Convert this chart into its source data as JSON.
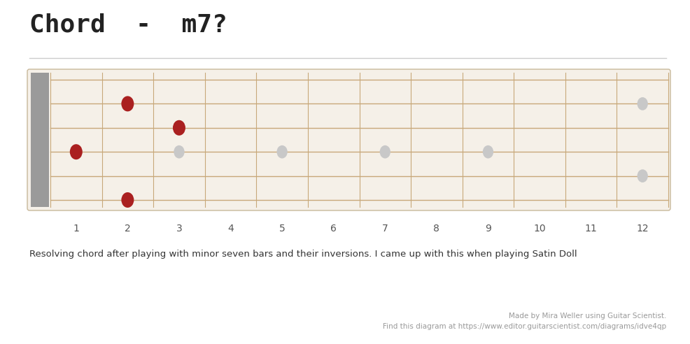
{
  "title": "Chord  -  m7?",
  "bg_color": "#ffffff",
  "fretboard_bg": "#f5f0e8",
  "fretboard_border": "#c8b89a",
  "nut_color": "#9a9a9a",
  "string_color": "#c8a87a",
  "fret_color": "#c8a87a",
  "num_strings": 6,
  "num_frets": 12,
  "red_dots": [
    {
      "fret": 2,
      "string": 2
    },
    {
      "fret": 3,
      "string": 3
    },
    {
      "fret": 1,
      "string": 4
    },
    {
      "fret": 2,
      "string": 6
    }
  ],
  "gray_dots": [
    {
      "fret": 3,
      "string": 4
    },
    {
      "fret": 5,
      "string": 4
    },
    {
      "fret": 7,
      "string": 4
    },
    {
      "fret": 9,
      "string": 4
    },
    {
      "fret": 12,
      "string": 2
    },
    {
      "fret": 12,
      "string": 5
    }
  ],
  "red_dot_color": "#aa2020",
  "gray_dot_color": "#c8c8c8",
  "fret_labels": [
    "1",
    "2",
    "3",
    "4",
    "5",
    "6",
    "7",
    "8",
    "9",
    "10",
    "11",
    "12"
  ],
  "caption": "Resolving chord after playing with minor seven bars and their inversions. I came up with this when playing Satin Doll",
  "footer_line1": "Made by Mira Weller using Guitar Scientist.",
  "footer_line2": "Find this diagram at https://www.editor.guitarscientist.com/diagrams/idve4qp",
  "separator_color": "#cccccc",
  "title_color": "#222222",
  "label_color": "#555555",
  "caption_color": "#333333",
  "footer_color": "#999999"
}
